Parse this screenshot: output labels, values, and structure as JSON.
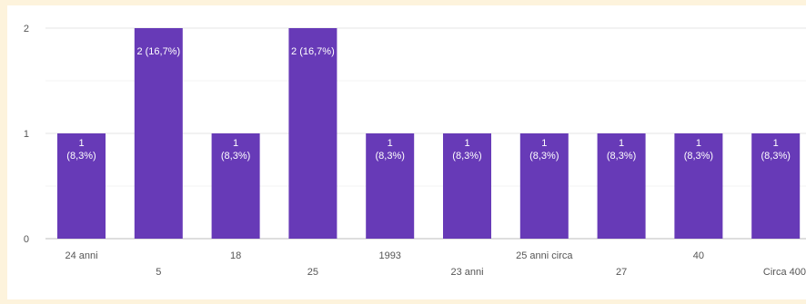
{
  "chart_data": {
    "type": "bar",
    "categories": [
      "24 anni",
      "5",
      "18",
      "25",
      "1993",
      "23 anni",
      "25 anni circa",
      "27",
      "40",
      "Circa 400"
    ],
    "values": [
      1,
      2,
      1,
      2,
      1,
      1,
      1,
      1,
      1,
      1
    ],
    "data_labels": [
      "1 (8,3%)",
      "2 (16,7%)",
      "1 (8,3%)",
      "2 (16,7%)",
      "1 (8,3%)",
      "1 (8,3%)",
      "1 (8,3%)",
      "1 (8,3%)",
      "1 (8,3%)",
      "1 (8,3%)"
    ],
    "title": "",
    "xlabel": "",
    "ylabel": "",
    "ylim": [
      0,
      2
    ],
    "yticks": [
      "0",
      "1",
      "2"
    ],
    "grid": true,
    "legend": "none",
    "colors": {
      "bar": "#673ab7",
      "grid": "#e6e6e6",
      "axis_text": "#555555",
      "label_text": "#ffffff"
    }
  }
}
